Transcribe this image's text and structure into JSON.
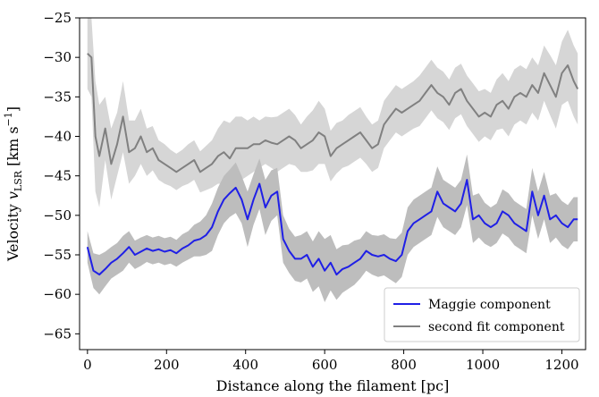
{
  "chart_data": {
    "type": "line",
    "title": "",
    "xlabel": "Distance along the filament [pc]",
    "ylabel": "Velocity v_LSR [km s^-1]",
    "ylabel_parts": {
      "prefix": "Velocity ",
      "var": "v",
      "sub": "LSR",
      "unit_open": " [km s",
      "unit_exp": "−1",
      "unit_close": "]"
    },
    "xlim": [
      -20,
      1260
    ],
    "ylim": [
      -67,
      -25
    ],
    "xticks": [
      0,
      200,
      400,
      600,
      800,
      1000,
      1200
    ],
    "xtick_labels": [
      "0",
      "200",
      "400",
      "600",
      "800",
      "1000",
      "1200"
    ],
    "yticks": [
      -65,
      -60,
      -55,
      -50,
      -45,
      -40,
      -35,
      -30,
      -25
    ],
    "ytick_labels": [
      "−65",
      "−60",
      "−55",
      "−50",
      "−45",
      "−40",
      "−35",
      "−30",
      "−25"
    ],
    "grid": false,
    "legend_position": "bottom-right",
    "series": [
      {
        "name": "Maggie component",
        "color": "#1f1fe6",
        "band_color": "#bdbdbd",
        "x": [
          0,
          15,
          30,
          45,
          60,
          75,
          90,
          105,
          120,
          135,
          150,
          165,
          180,
          195,
          210,
          225,
          240,
          255,
          270,
          285,
          300,
          315,
          330,
          345,
          360,
          375,
          390,
          405,
          420,
          435,
          450,
          465,
          480,
          495,
          510,
          525,
          540,
          555,
          570,
          585,
          600,
          615,
          630,
          645,
          660,
          675,
          690,
          705,
          720,
          735,
          750,
          765,
          780,
          795,
          810,
          825,
          840,
          855,
          870,
          885,
          900,
          915,
          930,
          945,
          960,
          975,
          990,
          1005,
          1020,
          1035,
          1050,
          1065,
          1080,
          1095,
          1110,
          1125,
          1140,
          1155,
          1170,
          1185,
          1200,
          1215,
          1230,
          1240
        ],
        "y": [
          -54.0,
          -57.0,
          -57.5,
          -56.8,
          -56.0,
          -55.5,
          -54.8,
          -54.0,
          -55.0,
          -54.6,
          -54.2,
          -54.5,
          -54.3,
          -54.6,
          -54.4,
          -54.8,
          -54.2,
          -53.8,
          -53.2,
          -53.0,
          -52.5,
          -51.5,
          -49.5,
          -48.0,
          -47.2,
          -46.5,
          -48.0,
          -50.5,
          -48.0,
          -46.0,
          -49.0,
          -47.5,
          -47.0,
          -53.0,
          -54.5,
          -55.5,
          -55.5,
          -55.0,
          -56.5,
          -55.5,
          -57.0,
          -56.0,
          -57.5,
          -56.8,
          -56.5,
          -56.0,
          -55.5,
          -54.5,
          -55.0,
          -55.2,
          -55.0,
          -55.5,
          -55.8,
          -55.0,
          -52.0,
          -51.0,
          -50.5,
          -50.0,
          -49.5,
          -47.0,
          -48.5,
          -49.0,
          -49.5,
          -48.5,
          -45.5,
          -50.5,
          -50.0,
          -51.0,
          -51.5,
          -51.0,
          -49.5,
          -50.0,
          -51.0,
          -51.5,
          -52.0,
          -47.0,
          -50.0,
          -47.5,
          -50.5,
          -50.0,
          -51.0,
          -51.5,
          -50.5,
          -50.5
        ],
        "band": [
          2.0,
          2.2,
          2.5,
          2.2,
          2.0,
          2.0,
          2.2,
          2.0,
          1.8,
          1.8,
          1.7,
          1.7,
          1.7,
          1.7,
          1.7,
          1.7,
          1.8,
          1.8,
          2.0,
          2.2,
          2.5,
          3.0,
          3.0,
          3.0,
          3.0,
          3.2,
          3.0,
          3.5,
          3.2,
          3.2,
          3.5,
          3.2,
          3.0,
          3.0,
          2.8,
          2.8,
          3.0,
          3.0,
          3.2,
          3.5,
          4.0,
          3.5,
          3.2,
          3.0,
          2.8,
          2.8,
          2.5,
          2.5,
          2.5,
          2.6,
          2.6,
          2.6,
          2.8,
          2.8,
          3.0,
          3.0,
          3.0,
          3.0,
          3.0,
          3.2,
          3.0,
          3.0,
          3.0,
          3.0,
          3.2,
          3.0,
          2.8,
          2.6,
          2.5,
          2.5,
          2.8,
          2.8,
          2.8,
          2.8,
          2.8,
          3.0,
          3.0,
          3.0,
          3.0,
          2.8,
          2.8,
          2.8,
          2.8,
          2.8
        ]
      },
      {
        "name": "second fit component",
        "color": "#808080",
        "band_color": "#d6d6d6",
        "x": [
          0,
          10,
          20,
          30,
          45,
          60,
          75,
          90,
          105,
          120,
          135,
          150,
          165,
          180,
          195,
          210,
          225,
          240,
          255,
          270,
          285,
          300,
          315,
          330,
          345,
          360,
          375,
          390,
          405,
          420,
          435,
          450,
          465,
          480,
          495,
          510,
          525,
          540,
          555,
          570,
          585,
          600,
          615,
          630,
          645,
          660,
          675,
          690,
          705,
          720,
          735,
          750,
          765,
          780,
          795,
          810,
          825,
          840,
          855,
          870,
          885,
          900,
          915,
          930,
          945,
          960,
          975,
          990,
          1005,
          1020,
          1035,
          1050,
          1065,
          1080,
          1095,
          1110,
          1125,
          1140,
          1155,
          1170,
          1185,
          1200,
          1215,
          1230,
          1240
        ],
        "y": [
          -29.5,
          -30.0,
          -40.0,
          -42.5,
          -39.0,
          -43.5,
          -41.0,
          -37.5,
          -42.0,
          -41.5,
          -40.0,
          -42.0,
          -41.5,
          -43.0,
          -43.5,
          -44.0,
          -44.5,
          -44.0,
          -43.5,
          -43.0,
          -44.5,
          -44.0,
          -43.5,
          -42.5,
          -42.0,
          -42.8,
          -41.5,
          -41.5,
          -41.5,
          -41.0,
          -41.0,
          -40.5,
          -40.8,
          -41.0,
          -40.5,
          -40.0,
          -40.5,
          -41.5,
          -41.0,
          -40.5,
          -39.5,
          -40.0,
          -42.5,
          -41.5,
          -41.0,
          -40.5,
          -40.0,
          -39.5,
          -40.5,
          -41.5,
          -41.0,
          -38.5,
          -37.5,
          -36.5,
          -37.0,
          -36.5,
          -36.0,
          -35.5,
          -34.5,
          -33.5,
          -34.5,
          -35.0,
          -36.0,
          -34.5,
          -34.0,
          -35.5,
          -36.5,
          -37.5,
          -37.0,
          -37.5,
          -36.0,
          -35.5,
          -36.5,
          -35.0,
          -34.5,
          -35.0,
          -33.5,
          -34.5,
          -32.0,
          -33.5,
          -35.0,
          -32.0,
          -31.0,
          -33.0,
          -34.0
        ],
        "band": [
          4.5,
          5.0,
          7.0,
          6.5,
          4.0,
          4.5,
          4.0,
          4.5,
          4.0,
          3.5,
          3.5,
          3.0,
          2.8,
          2.5,
          2.5,
          2.3,
          2.3,
          2.3,
          2.5,
          2.5,
          2.6,
          2.8,
          3.0,
          3.5,
          4.0,
          4.5,
          4.0,
          4.0,
          3.5,
          3.5,
          3.0,
          3.0,
          3.2,
          3.5,
          3.5,
          3.5,
          3.2,
          3.0,
          3.5,
          3.8,
          4.0,
          3.5,
          3.2,
          3.2,
          3.0,
          3.2,
          3.2,
          3.2,
          3.0,
          3.0,
          3.0,
          3.0,
          3.0,
          3.0,
          3.0,
          3.0,
          3.0,
          3.2,
          3.2,
          3.2,
          3.2,
          3.2,
          3.2,
          3.2,
          3.2,
          3.2,
          3.2,
          3.2,
          3.0,
          3.0,
          3.2,
          3.5,
          3.5,
          3.5,
          3.5,
          3.5,
          3.5,
          3.5,
          3.5,
          3.8,
          4.0,
          4.0,
          4.5,
          4.5,
          4.5
        ]
      }
    ]
  }
}
